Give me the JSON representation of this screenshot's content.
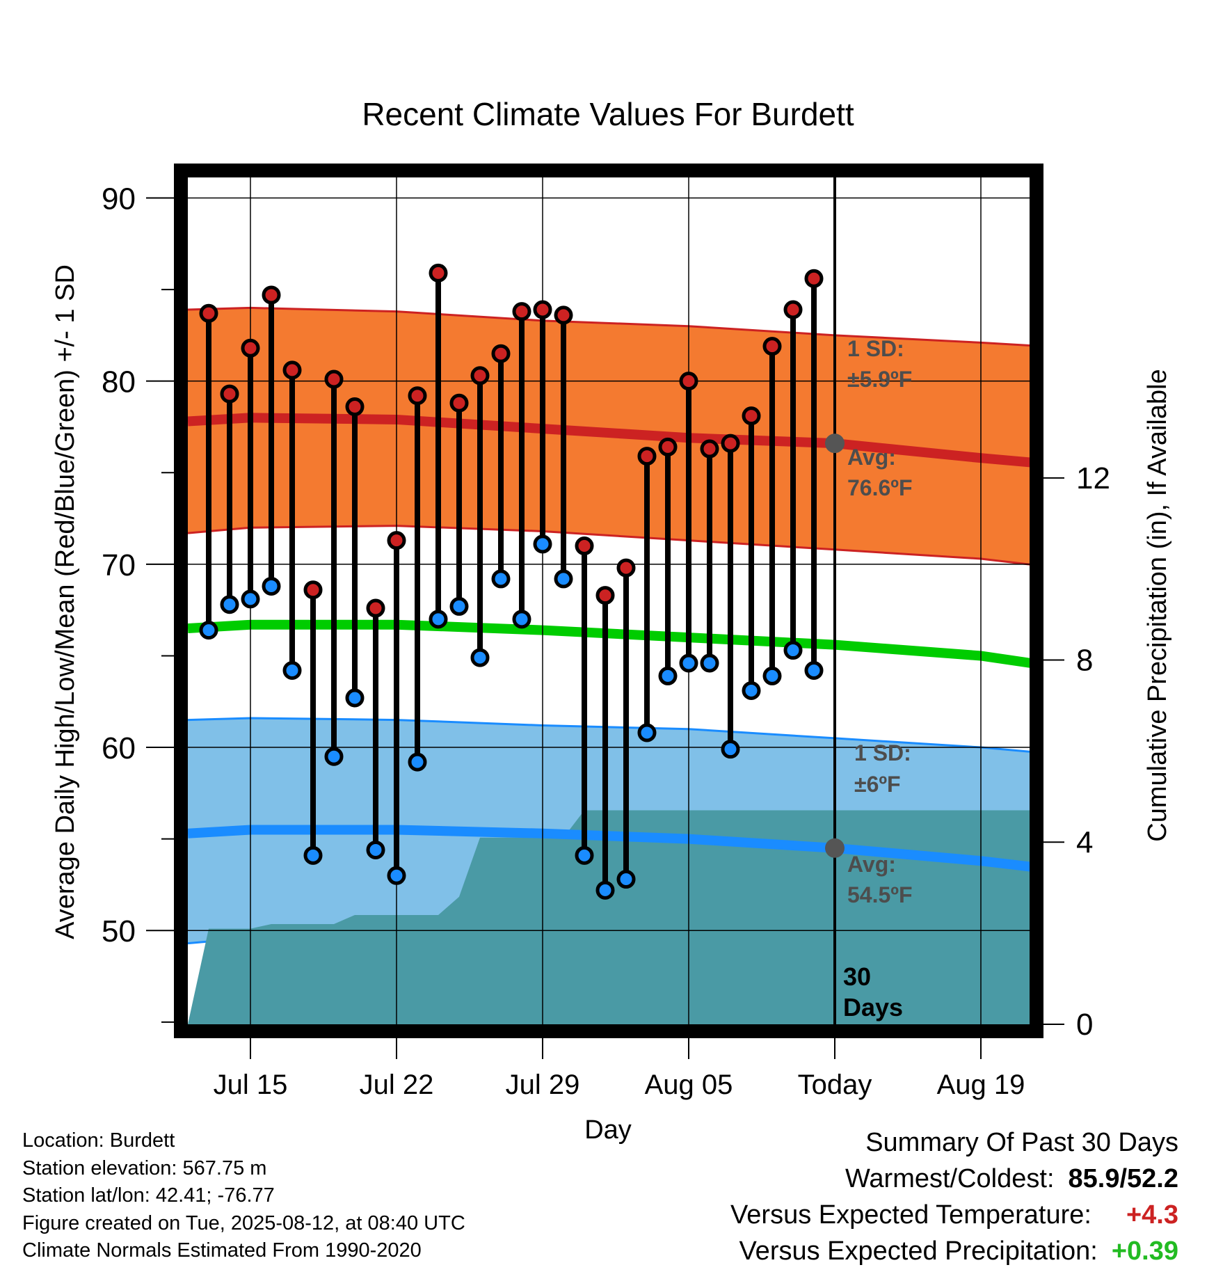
{
  "chart_data": {
    "type": "line",
    "title": "Recent Climate Values For Burdett",
    "xlabel": "Day",
    "ylabel": "Average Daily High/Low/Mean (Red/Blue/Green) +/- 1 SD",
    "y2label": "Cumulative Precipitation (in), If Available",
    "ylim": [
      44.5,
      91.5
    ],
    "y2lim": [
      0,
      18.6
    ],
    "yticks": [
      50,
      60,
      70,
      80,
      90
    ],
    "y2ticks": [
      0,
      4,
      8,
      12
    ],
    "xticks": [
      "Jul 15",
      "Jul 22",
      "Jul 29",
      "Aug 05",
      "Today",
      "Aug 19"
    ],
    "x_start": "Jul 12",
    "dates": [
      "Jul 13",
      "Jul 14",
      "Jul 15",
      "Jul 16",
      "Jul 17",
      "Jul 18",
      "Jul 19",
      "Jul 20",
      "Jul 21",
      "Jul 22",
      "Jul 23",
      "Jul 24",
      "Jul 25",
      "Jul 26",
      "Jul 27",
      "Jul 28",
      "Jul 29",
      "Jul 30",
      "Jul 31",
      "Aug 01",
      "Aug 02",
      "Aug 03",
      "Aug 04",
      "Aug 05",
      "Aug 06",
      "Aug 07",
      "Aug 08",
      "Aug 09",
      "Aug 10",
      "Aug 11"
    ],
    "highs": [
      83.7,
      79.3,
      81.8,
      84.7,
      80.6,
      68.6,
      80.1,
      78.6,
      67.6,
      71.3,
      79.2,
      85.9,
      78.8,
      80.3,
      81.5,
      83.8,
      83.9,
      83.6,
      71.0,
      68.3,
      69.8,
      75.9,
      76.4,
      80.0,
      76.3,
      76.6,
      78.1,
      81.9,
      83.9,
      85.6
    ],
    "lows": [
      66.4,
      67.8,
      68.1,
      68.8,
      64.2,
      54.1,
      59.5,
      62.7,
      54.4,
      53.0,
      59.2,
      67.0,
      67.7,
      64.9,
      69.2,
      67.0,
      71.1,
      69.2,
      54.1,
      52.2,
      52.8,
      60.8,
      63.9,
      64.6,
      64.6,
      59.9,
      63.1,
      63.9,
      65.3,
      64.2
    ],
    "normal_dates": [
      "Jul 12",
      "Jul 15",
      "Jul 22",
      "Jul 29",
      "Aug 05",
      "Aug 12",
      "Aug 19",
      "Aug 22"
    ],
    "normal_high": [
      77.8,
      78.0,
      77.9,
      77.4,
      76.9,
      76.6,
      75.8,
      75.5
    ],
    "normal_high_upper": [
      83.9,
      84.0,
      83.8,
      83.3,
      83.0,
      82.5,
      82.1,
      81.9
    ],
    "normal_high_lower": [
      71.7,
      72.0,
      72.1,
      71.8,
      71.3,
      70.8,
      70.3,
      69.9
    ],
    "normal_mean": [
      66.5,
      66.7,
      66.7,
      66.4,
      66.0,
      65.6,
      65.0,
      64.5
    ],
    "normal_low": [
      55.3,
      55.5,
      55.5,
      55.3,
      55.0,
      54.5,
      53.8,
      53.4
    ],
    "normal_low_upper": [
      61.5,
      61.6,
      61.5,
      61.2,
      61.0,
      60.5,
      60.0,
      59.7
    ],
    "normal_low_lower": [
      49.3,
      49.6,
      49.8,
      49.7,
      49.5,
      49.0,
      48.5,
      48.2
    ],
    "precip_dates": [
      "Jul 12",
      "Jul 13",
      "Jul 14",
      "Jul 15",
      "Jul 16",
      "Jul 17",
      "Jul 18",
      "Jul 19",
      "Jul 20",
      "Jul 21",
      "Jul 22",
      "Jul 23",
      "Jul 24",
      "Jul 25",
      "Jul 26",
      "Jul 27",
      "Jul 28",
      "Jul 29",
      "Jul 30",
      "Jul 31",
      "Aug 22"
    ],
    "precip_cum": [
      0,
      2.1,
      2.1,
      2.1,
      2.2,
      2.2,
      2.2,
      2.2,
      2.4,
      2.4,
      2.4,
      2.4,
      2.4,
      2.8,
      4.1,
      4.1,
      4.1,
      4.1,
      4.1,
      4.7,
      4.7
    ],
    "today": "Aug 12",
    "normal_today_high": 76.6,
    "normal_today_low": 54.5,
    "annotations": {
      "high_sd_label": "1 SD:",
      "high_sd_value": "±5.9ºF",
      "high_avg_label": "Avg:",
      "high_avg_value": "76.6ºF",
      "low_sd_label": "1 SD:",
      "low_sd_value": "±6ºF",
      "low_avg_label": "Avg:",
      "low_avg_value": "54.5ºF",
      "window_number": "30",
      "window_unit": "Days"
    },
    "colors": {
      "high_band": "#f47a30",
      "high_line": "#cc2222",
      "mean_line": "#00cc00",
      "low_band": "#80c0e8",
      "low_line": "#1a8cff",
      "low_band_edge": "#1a8cff",
      "precip": "#4a9aa5",
      "high_marker": "#cc2222",
      "low_marker": "#1a8cff",
      "today_marker": "#555555"
    },
    "grid": true
  },
  "info": {
    "location": "Location: Burdett",
    "elevation": "Station elevation: 567.75 m",
    "latlon": "Station lat/lon: 42.41; -76.77",
    "created": "Figure created on Tue, 2025-08-12, at 08:40 UTC",
    "normals": "Climate Normals Estimated From 1990-2020"
  },
  "summary": {
    "heading": "Summary Of Past 30 Days",
    "warm_label": "Warmest/Coldest:",
    "warm_value": "85.9/52.2",
    "temp_label": "Versus Expected Temperature:",
    "temp_value": "+4.3",
    "precip_label": "Versus Expected Precipitation:",
    "precip_value": "+0.39"
  }
}
